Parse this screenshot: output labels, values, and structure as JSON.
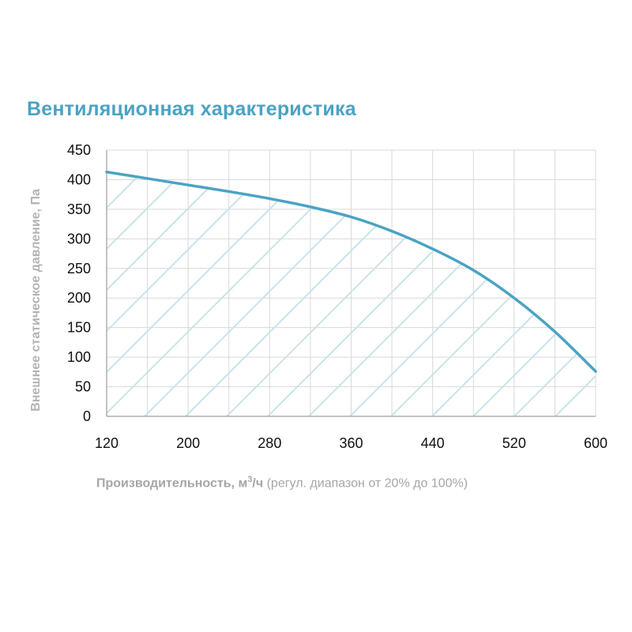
{
  "chart_data": {
    "type": "area",
    "title": "Вентиляционная характеристика",
    "ylabel": "Внешнее статическое давление, Па",
    "xlabel": {
      "main": "Производительность, м",
      "superscript": "3",
      "unit_tail": "/ч",
      "note": "(регул. диапазон от 20% до 100%)"
    },
    "xlim": [
      120,
      600
    ],
    "ylim": [
      0,
      450
    ],
    "x_ticks": [
      120,
      200,
      280,
      360,
      440,
      520,
      600
    ],
    "y_ticks": [
      0,
      50,
      100,
      150,
      200,
      250,
      300,
      350,
      400,
      450
    ],
    "grid": true,
    "fill": "hatched",
    "series": [
      {
        "x": [
          120,
          160,
          200,
          240,
          280,
          320,
          360,
          400,
          440,
          480,
          520,
          560,
          600
        ],
        "y": [
          413,
          402,
          391,
          380,
          368,
          354,
          337,
          313,
          283,
          247,
          200,
          143,
          76
        ]
      }
    ]
  },
  "colors": {
    "curve": "#4ba3c3",
    "title": "#4ba3c3",
    "grid": "#d9d9d9",
    "hatch": "#c9e3ea",
    "axis_label": "#b3b3b3"
  }
}
